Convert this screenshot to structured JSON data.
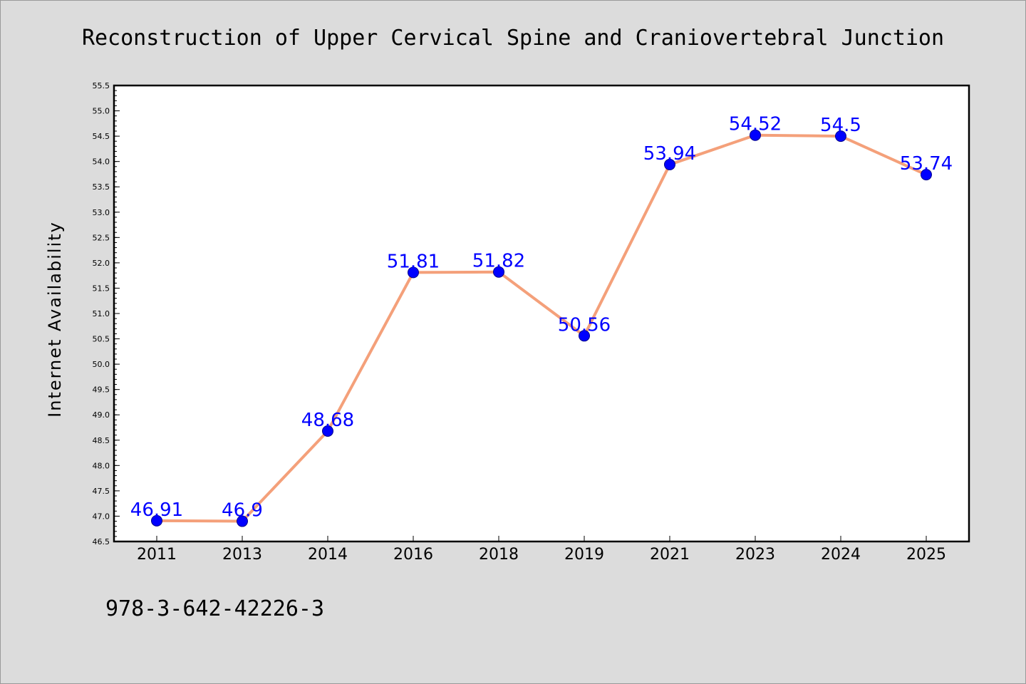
{
  "chart_data": {
    "type": "line",
    "title": "Reconstruction of Upper Cervical Spine and Craniovertebral Junction",
    "xlabel": "",
    "ylabel": "Internet Availability",
    "categories": [
      "2011",
      "2013",
      "2014",
      "2016",
      "2018",
      "2019",
      "2021",
      "2023",
      "2024",
      "2025"
    ],
    "series": [
      {
        "values": [
          46.91,
          46.9,
          48.68,
          51.81,
          51.82,
          50.56,
          53.94,
          54.52,
          54.5,
          53.74
        ],
        "labels": [
          "46.91",
          "46.9",
          "48.68",
          "51.81",
          "51.82",
          "50.56",
          "53.94",
          "54.52",
          "54.5",
          "53.74"
        ],
        "line_color": "#f4a07a",
        "marker_color": "#0000ff"
      }
    ],
    "ylim": [
      46.5,
      55.5
    ],
    "yticks": [
      "46.5",
      "47.0",
      "47.5",
      "48.0",
      "48.5",
      "49.0",
      "49.5",
      "50.0",
      "50.5",
      "51.0",
      "51.5",
      "52.0",
      "52.5",
      "53.0",
      "53.5",
      "54.0",
      "54.5",
      "55.0",
      "55.5"
    ],
    "grid": false,
    "legend": "none"
  },
  "footer_text": "978-3-642-42226-3",
  "colors": {
    "background": "#dcdcdc",
    "plot_background": "#ffffff",
    "label_color": "#0000ff"
  }
}
